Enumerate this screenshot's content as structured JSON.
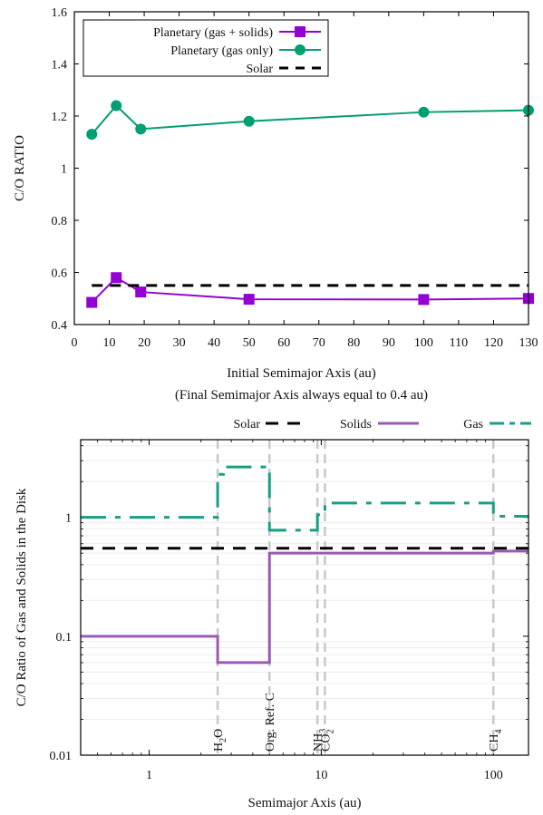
{
  "chart_data": [
    {
      "type": "line",
      "xlabel": "Initial Semimajor Axis (au)",
      "xlabel_note": "(Final Semimajor Axis always equal to 0.4 au)",
      "ylabel": "C/O RATIO",
      "xlim": [
        0,
        130
      ],
      "ylim": [
        0.4,
        1.6
      ],
      "xticks": [
        0,
        10,
        20,
        30,
        40,
        50,
        60,
        70,
        80,
        90,
        100,
        110,
        120,
        130
      ],
      "yticks": [
        0.4,
        0.6,
        0.8,
        1,
        1.2,
        1.4,
        1.6
      ],
      "ytick_labels": [
        "0.4",
        "0.6",
        "0.8",
        "1",
        "1.2",
        "1.4",
        "1.6"
      ],
      "legend_position": "top-left",
      "series": [
        {
          "name": "Planetary (gas + solids)",
          "color": "#9400d3",
          "marker": "square",
          "x": [
            5,
            12,
            19,
            50,
            100,
            130
          ],
          "y": [
            0.485,
            0.58,
            0.525,
            0.497,
            0.496,
            0.5
          ]
        },
        {
          "name": "Planetary (gas only)",
          "color": "#009e73",
          "marker": "circle",
          "x": [
            5,
            12,
            19,
            50,
            100,
            130
          ],
          "y": [
            1.13,
            1.24,
            1.15,
            1.18,
            1.215,
            1.222
          ]
        },
        {
          "name": "Solar",
          "color": "#000000",
          "style": "dashed",
          "x": [
            5,
            130
          ],
          "y": [
            0.55,
            0.55
          ]
        }
      ]
    },
    {
      "type": "line",
      "xlabel": "Semimajor Axis (au)",
      "ylabel": "C/O Ratio of Gas and Solids in the Disk",
      "xscale": "log",
      "yscale": "log",
      "xlim": [
        0.4,
        160
      ],
      "ylim": [
        0.01,
        4.5
      ],
      "xticks": [
        1,
        10,
        100
      ],
      "xtick_labels": [
        "1",
        "10",
        "100"
      ],
      "yticks": [
        0.01,
        0.1,
        1
      ],
      "ytick_labels": [
        "0.01",
        "0.1",
        "1"
      ],
      "legend_position": "top",
      "snowlines": [
        {
          "label": "H",
          "sub": "2",
          "tail": "O",
          "x": 2.5
        },
        {
          "label": "Org. Ref. C",
          "sub": "",
          "tail": "",
          "x": 5.0
        },
        {
          "label": "NH",
          "sub": "3",
          "tail": "",
          "x": 9.5
        },
        {
          "label": "CO",
          "sub": "2",
          "tail": "",
          "x": 10.5
        },
        {
          "label": "CH",
          "sub": "4",
          "tail": "",
          "x": 100
        }
      ],
      "series": [
        {
          "name": "Solar",
          "color": "#000000",
          "style": "dashed",
          "x": [
            0.4,
            160
          ],
          "y": [
            0.55,
            0.55
          ]
        },
        {
          "name": "Solids",
          "color": "#9b59b6",
          "style": "step",
          "x": [
            0.4,
            2.5,
            2.5,
            5.0,
            5.0,
            100,
            100,
            160
          ],
          "y": [
            0.1,
            0.1,
            0.06,
            0.06,
            0.5,
            0.5,
            0.52,
            0.52
          ]
        },
        {
          "name": "Gas",
          "color": "#16a085",
          "style": "dash-dot-step",
          "x": [
            0.4,
            2.5,
            2.5,
            2.7,
            2.7,
            5.0,
            5.0,
            9.5,
            9.5,
            10.5,
            10.5,
            100,
            100,
            160
          ],
          "y": [
            1.0,
            1.0,
            2.3,
            2.3,
            2.65,
            2.65,
            0.78,
            0.78,
            1.05,
            1.05,
            1.32,
            1.32,
            1.02,
            1.02
          ]
        }
      ]
    }
  ]
}
